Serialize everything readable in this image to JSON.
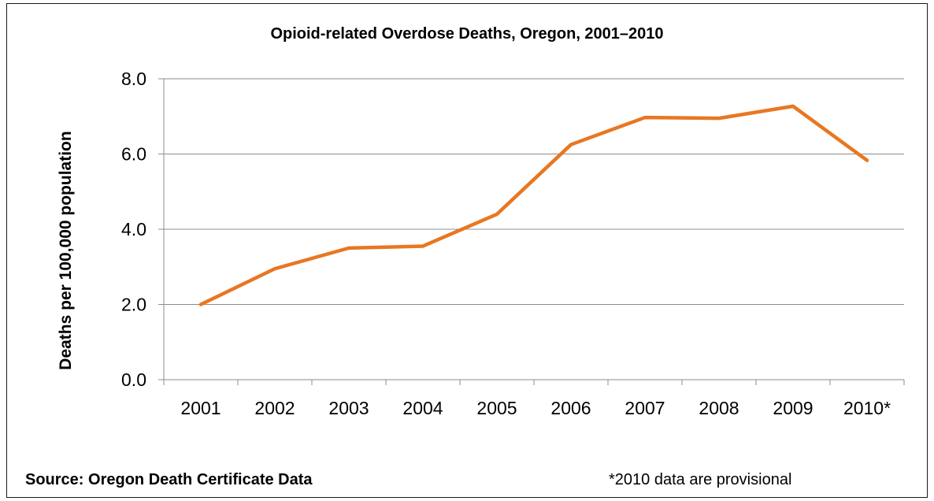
{
  "chart_data": {
    "type": "line",
    "title": "Opioid-related Overdose Deaths, Oregon, 2001–2010",
    "xlabel": "",
    "ylabel": "Deaths per 100,000 population",
    "categories": [
      "2001",
      "2002",
      "2003",
      "2004",
      "2005",
      "2006",
      "2007",
      "2008",
      "2009",
      "2010*"
    ],
    "series": [
      {
        "values": [
          2.0,
          2.95,
          3.5,
          3.55,
          4.4,
          6.25,
          6.97,
          6.95,
          7.27,
          5.83
        ]
      }
    ],
    "ylim": [
      0,
      8
    ],
    "yticks": [
      "0.0",
      "2.0",
      "4.0",
      "6.0",
      "8.0"
    ],
    "grid": true,
    "colors": {
      "line": "#E87722",
      "grid": "#8c8c8c"
    }
  },
  "footer": {
    "source": "Source: Oregon Death Certificate Data",
    "note": "*2010 data are provisional"
  }
}
